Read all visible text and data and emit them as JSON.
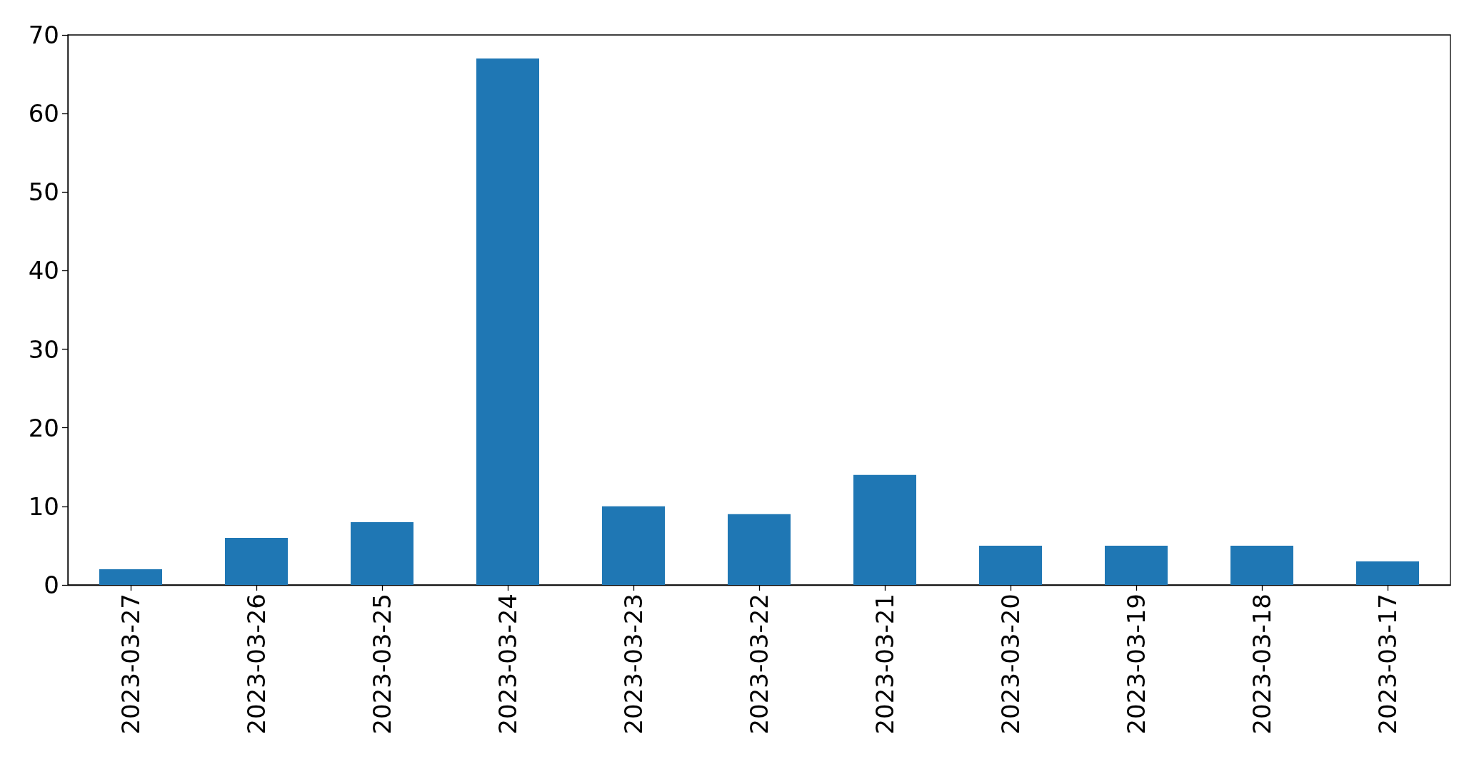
{
  "chart_data": {
    "type": "bar",
    "categories": [
      "2023-03-27",
      "2023-03-26",
      "2023-03-25",
      "2023-03-24",
      "2023-03-23",
      "2023-03-22",
      "2023-03-21",
      "2023-03-20",
      "2023-03-19",
      "2023-03-18",
      "2023-03-17"
    ],
    "values": [
      2,
      6,
      8,
      67,
      10,
      9,
      14,
      5,
      5,
      5,
      3
    ],
    "color": "#1f77b4",
    "ylim": [
      0,
      70
    ],
    "yticks": [
      0,
      10,
      20,
      30,
      40,
      50,
      60,
      70
    ]
  }
}
